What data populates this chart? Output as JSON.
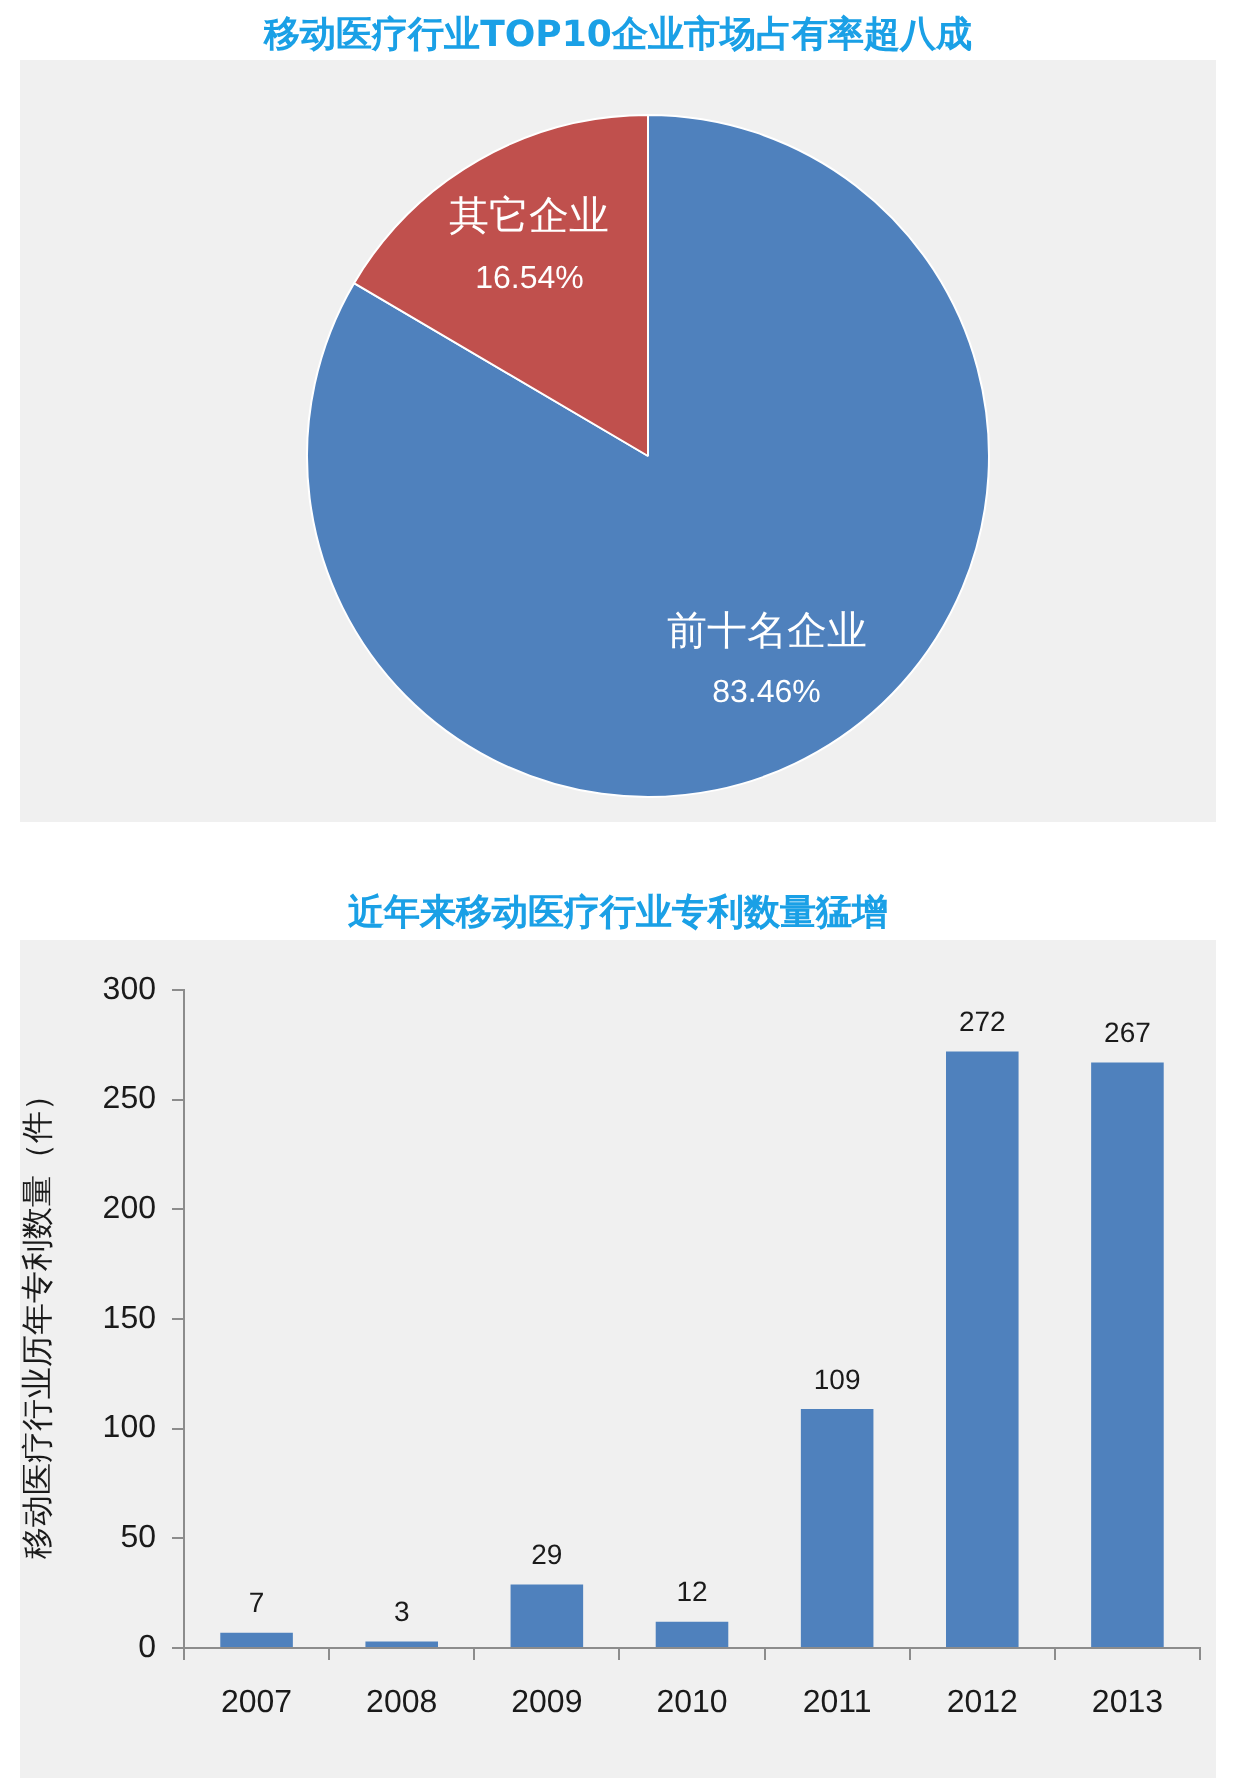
{
  "chart_data": [
    {
      "type": "pie",
      "title": "移动医疗行业TOP10企业市场占有率超八成",
      "categories": [
        "前十名企业",
        "其它企业"
      ],
      "values": [
        83.46,
        16.54
      ],
      "colors": [
        "#4f81bd",
        "#c0504d"
      ],
      "value_labels": [
        "83.46%",
        "16.54%"
      ],
      "legend": false
    },
    {
      "type": "bar",
      "title": "近年来移动医疗行业专利数量猛增",
      "ylabel": "移动医疗行业历年专利数量（件）",
      "categories": [
        "2007",
        "2008",
        "2009",
        "2010",
        "2011",
        "2012",
        "2013"
      ],
      "values": [
        7,
        3,
        29,
        12,
        109,
        272,
        267
      ],
      "color": "#4f81bd",
      "ylim": [
        0,
        300
      ],
      "yticks": [
        0,
        50,
        100,
        150,
        200,
        250,
        300
      ],
      "grid": false,
      "data_labels": true,
      "legend": false
    }
  ]
}
